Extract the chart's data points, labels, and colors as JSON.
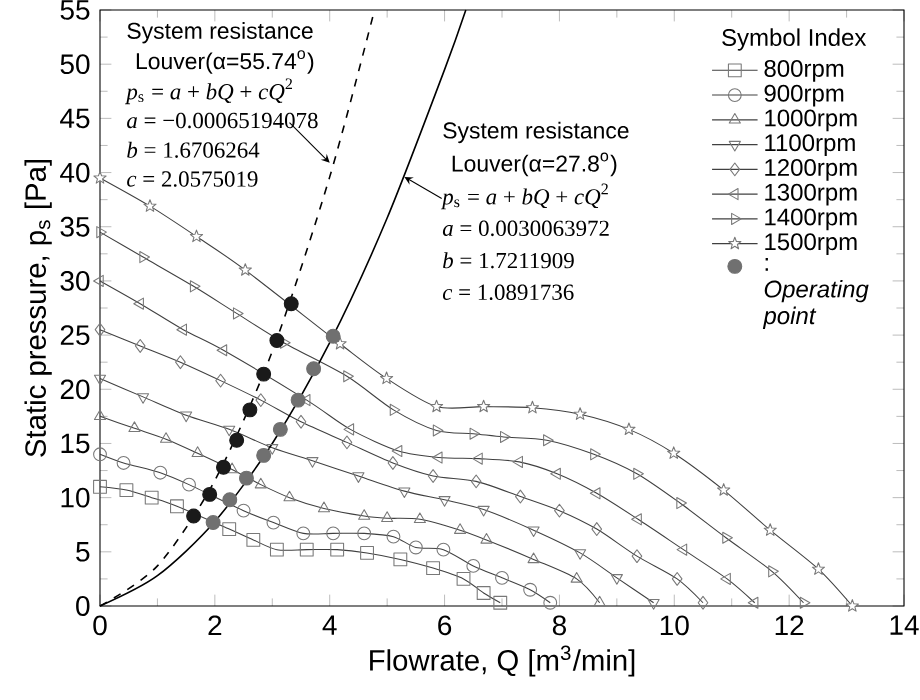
{
  "chart_data": {
    "type": "line",
    "xlabel": "Flowrate, Q [m$^{3}$/min]",
    "ylabel": "Static pressure, p$_{s}$ [Pa]",
    "legend_title": "Symbol Index",
    "legend": "top right",
    "grid": false,
    "xlim": [
      0,
      14
    ],
    "xticks": [
      0,
      2,
      4,
      6,
      8,
      10,
      12,
      14
    ],
    "ylim": [
      0,
      55
    ],
    "yticks": [
      0,
      5,
      10,
      15,
      20,
      25,
      30,
      35,
      40,
      45,
      50,
      55
    ],
    "annotations": [
      "System resistance",
      "Louver(α=55.74$^{o}$)",
      "*p*$_{s}$ = *a* + *bQ* + *cQ*$^{2}$",
      "*a* = −0.00065194078",
      "*b* = 1.6706264",
      "*c* = 2.0575019",
      "System resistance",
      "Louver(α=27.8$^{o}$)",
      "*p*$_{s}$ = *a* + *bQ* + *cQ*$^{2}$",
      "*a* = 0.0030063972",
      "*b* = 1.7211909",
      "*c* = 1.0891736"
    ],
    "series": [
      {
        "name": "800rpm",
        "marker": "square",
        "color": "#404040",
        "x": [
          0,
          0.46,
          0.9,
          1.34,
          1.8,
          2.25,
          2.67,
          3.08,
          3.6,
          4.13,
          4.65,
          5.23,
          5.8,
          6.33,
          6.68,
          6.97
        ],
        "values": [
          11,
          10.7,
          10.0,
          9.2,
          null,
          7.1,
          6.1,
          5.2,
          5.2,
          5.2,
          4.9,
          4.3,
          3.5,
          2.5,
          1.2,
          0.3
        ]
      },
      {
        "name": "900rpm",
        "marker": "circle",
        "color": "#404040",
        "x": [
          0,
          0.41,
          1.05,
          1.55,
          2.05,
          2.5,
          3.02,
          3.54,
          4.06,
          4.6,
          5.11,
          5.5,
          5.98,
          6.5,
          7.0,
          7.49,
          7.84
        ],
        "values": [
          14,
          13.2,
          12.3,
          11.2,
          null,
          8.8,
          7.7,
          6.7,
          6.7,
          6.7,
          6.4,
          5.4,
          5.2,
          3.7,
          2.6,
          1.5,
          0.3
        ]
      },
      {
        "name": "1000rpm",
        "marker": "triangle",
        "color": "#404040",
        "x": [
          0,
          0.6,
          1.15,
          1.7,
          2.3,
          2.8,
          3.3,
          3.9,
          4.6,
          5.0,
          5.57,
          6.27,
          6.73,
          7.55,
          8.3,
          8.7
        ],
        "values": [
          17.5,
          16.4,
          15.4,
          14.1,
          12.6,
          11.2,
          10.0,
          9.0,
          8.3,
          8.1,
          8.0,
          7.0,
          6.1,
          4.3,
          2.5,
          0.3
        ]
      },
      {
        "name": "1100rpm",
        "marker": "triangle-down",
        "color": "#404040",
        "x": [
          0,
          0.75,
          1.5,
          2.25,
          3.0,
          3.7,
          4.5,
          5.3,
          6.0,
          6.68,
          7.55,
          8.36,
          9.0,
          9.64
        ],
        "values": [
          21,
          19.3,
          17.6,
          16.3,
          14.6,
          13.4,
          12.0,
          10.6,
          9.8,
          8.9,
          7.0,
          4.9,
          2.6,
          0.3
        ]
      },
      {
        "name": "1200rpm",
        "marker": "diamond",
        "color": "#404040",
        "x": [
          0,
          0.7,
          1.4,
          2.1,
          2.8,
          3.5,
          4.3,
          5.1,
          5.8,
          6.55,
          7.32,
          8.0,
          8.65,
          9.35,
          10.05,
          10.5
        ],
        "values": [
          25.5,
          24.0,
          22.5,
          20.8,
          19.0,
          17.0,
          15.1,
          13.2,
          12.0,
          11.5,
          10.1,
          8.8,
          7.1,
          4.6,
          2.5,
          0.3
        ]
      },
      {
        "name": "1300rpm",
        "marker": "triangle-left",
        "color": "#404040",
        "x": [
          0,
          0.7,
          1.45,
          2.15,
          2.9,
          3.6,
          4.36,
          5.2,
          5.9,
          6.6,
          7.3,
          7.96,
          8.65,
          9.37,
          10.16,
          10.92,
          11.4
        ],
        "values": [
          30,
          27.9,
          25.5,
          23.6,
          null,
          19.0,
          16.3,
          14.3,
          13.7,
          13.6,
          13.3,
          12.2,
          10.4,
          8.0,
          5.2,
          2.5,
          0.3
        ]
      },
      {
        "name": "1400rpm",
        "marker": "triangle-right",
        "color": "#404040",
        "x": [
          0,
          0.75,
          1.63,
          2.38,
          3.2,
          4.3,
          5.11,
          5.86,
          6.5,
          7.03,
          7.78,
          8.6,
          9.35,
          10.1,
          10.9,
          11.7,
          12.25
        ],
        "values": [
          34.5,
          32.2,
          29.5,
          27.0,
          24.3,
          21.2,
          18.1,
          16.2,
          15.9,
          15.6,
          15.3,
          14.0,
          12.2,
          9.5,
          6.3,
          3.2,
          0.3
        ]
      },
      {
        "name": "1500rpm",
        "marker": "star",
        "color": "#404040",
        "x": [
          0,
          0.87,
          1.68,
          2.53,
          3.35,
          4.18,
          4.99,
          5.86,
          6.68,
          7.53,
          8.36,
          9.21,
          9.99,
          10.86,
          11.67,
          12.51,
          13.1
        ],
        "values": [
          39.5,
          36.9,
          34.1,
          31.0,
          null,
          24.2,
          21.0,
          18.4,
          18.4,
          18.3,
          17.7,
          16.3,
          14.1,
          10.7,
          7.0,
          3.4,
          0
        ]
      },
      {
        "type": "line",
        "marker": "none",
        "line_style": "dashed",
        "color": "#000000",
        "x": [
          0,
          1,
          2,
          3,
          4,
          4.77
        ],
        "values": [
          0,
          3.7,
          11.6,
          23.5,
          39.6,
          54.8
        ]
      },
      {
        "type": "line",
        "marker": "none",
        "line_style": "solid",
        "color": "#000000",
        "x": [
          0,
          1,
          2,
          3,
          4,
          5,
          6,
          6.37
        ],
        "values": [
          0,
          2.8,
          7.8,
          15.0,
          24.3,
          35.8,
          49.5,
          55.0
        ]
      },
      {
        "type": "scatter",
        "marker": "circle",
        "color": "#1a1a1a",
        "x": [
          1.63,
          1.91,
          2.15,
          2.38,
          2.61,
          2.85,
          3.08,
          3.33
        ],
        "values": [
          8.3,
          10.3,
          12.8,
          15.3,
          18.1,
          21.4,
          24.5,
          27.9
        ]
      },
      {
        "name": ": *Operating point*",
        "type": "scatter",
        "marker": "circle",
        "color": "#707070",
        "x": [
          1.97,
          2.26,
          2.55,
          2.85,
          3.14,
          3.45,
          3.72,
          4.06
        ],
        "values": [
          7.7,
          9.8,
          11.8,
          13.9,
          16.3,
          19.0,
          21.9,
          24.9
        ]
      }
    ]
  }
}
